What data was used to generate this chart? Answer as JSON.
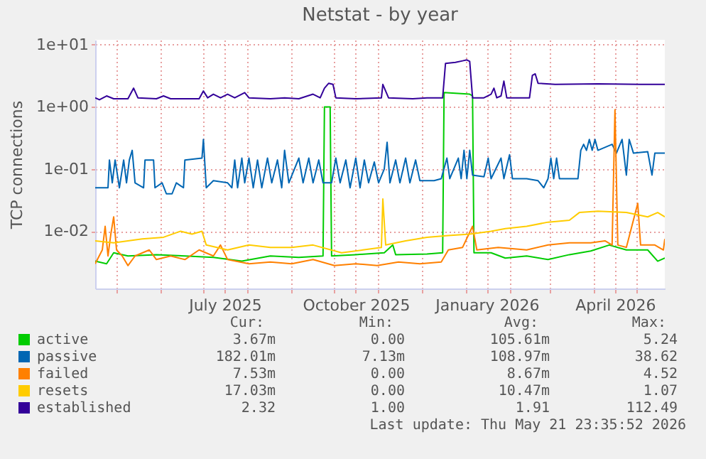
{
  "chart_data": {
    "type": "line",
    "title": "Netstat - by year",
    "ylabel": "TCP connections",
    "log": "y",
    "grid": true,
    "legend": "bottom",
    "marker": "none",
    "line_style": "solid",
    "xlim": [
      "2025-04-16",
      "2026-05-21"
    ],
    "xticks": [
      {
        "value": "2025-05-01",
        "label": null
      },
      {
        "value": "2025-06-01",
        "label": null
      },
      {
        "value": "2025-07-01",
        "label": null
      },
      {
        "value": "2025-07-16",
        "label": "July 2025"
      },
      {
        "value": "2025-08-01",
        "label": null
      },
      {
        "value": "2025-09-01",
        "label": null
      },
      {
        "value": "2025-10-01",
        "label": null
      },
      {
        "value": "2025-10-16",
        "label": "October 2025"
      },
      {
        "value": "2025-11-01",
        "label": null
      },
      {
        "value": "2025-12-01",
        "label": null
      },
      {
        "value": "2026-01-01",
        "label": null
      },
      {
        "value": "2026-01-16",
        "label": "January 2026"
      },
      {
        "value": "2026-02-01",
        "label": null
      },
      {
        "value": "2026-03-01",
        "label": null
      },
      {
        "value": "2026-04-01",
        "label": null
      },
      {
        "value": "2026-04-16",
        "label": "April 2026"
      },
      {
        "value": "2026-05-01",
        "label": null
      }
    ],
    "ylim": [
      0.0012,
      12
    ],
    "yticks": [
      {
        "value": 0.01,
        "label": "1e-02"
      },
      {
        "value": 0.1,
        "label": "1e-01"
      },
      {
        "value": 1,
        "label": "1e+00"
      },
      {
        "value": 10,
        "label": "1e+01"
      }
    ],
    "series": [
      {
        "name": "active",
        "color": "#00cc00",
        "x": [
          "2025-04-16",
          "2025-04-24",
          "2025-04-29",
          "2025-05-09",
          "2025-05-29",
          "2025-06-18",
          "2025-07-08",
          "2025-07-28",
          "2025-08-17",
          "2025-09-06",
          "2025-09-23",
          "2025-09-24",
          "2025-09-28",
          "2025-09-29",
          "2025-10-16",
          "2025-11-05",
          "2025-11-11",
          "2025-11-13",
          "2025-12-05",
          "2025-12-16",
          "2025-12-17",
          "2026-01-04",
          "2026-01-06",
          "2026-01-07",
          "2026-01-19",
          "2026-01-29",
          "2026-02-13",
          "2026-02-28",
          "2026-03-15",
          "2026-03-30",
          "2026-04-12",
          "2026-04-24",
          "2026-05-09",
          "2026-05-16",
          "2026-05-21"
        ],
        "values": [
          0.0033,
          0.003,
          0.0045,
          0.004,
          0.0042,
          0.004,
          0.0038,
          0.0033,
          0.004,
          0.0038,
          0.004,
          1.0,
          1.0,
          0.004,
          0.0042,
          0.0045,
          0.006,
          0.0042,
          0.0043,
          0.0045,
          1.7,
          1.6,
          1.5,
          0.0045,
          0.0045,
          0.0037,
          0.004,
          0.0035,
          0.0042,
          0.0048,
          0.006,
          0.005,
          0.005,
          0.0033,
          0.0037
        ]
      },
      {
        "name": "passive",
        "color": "#0066b3",
        "x": [
          "2025-04-16",
          "2025-04-25",
          "2025-04-26",
          "2025-04-28",
          "2025-04-30",
          "2025-05-03",
          "2025-05-06",
          "2025-05-08",
          "2025-05-10",
          "2025-05-12",
          "2025-05-14",
          "2025-05-20",
          "2025-05-21",
          "2025-05-27",
          "2025-05-28",
          "2025-06-02",
          "2025-06-05",
          "2025-06-09",
          "2025-06-12",
          "2025-06-17",
          "2025-06-18",
          "2025-06-30",
          "2025-07-01",
          "2025-07-03",
          "2025-07-08",
          "2025-07-18",
          "2025-07-21",
          "2025-07-23",
          "2025-07-25",
          "2025-07-28",
          "2025-07-30",
          "2025-08-02",
          "2025-08-05",
          "2025-08-08",
          "2025-08-11",
          "2025-08-15",
          "2025-08-18",
          "2025-08-22",
          "2025-08-25",
          "2025-08-27",
          "2025-08-30",
          "2025-09-06",
          "2025-09-09",
          "2025-09-13",
          "2025-09-16",
          "2025-09-20",
          "2025-09-23",
          "2025-09-29",
          "2025-10-02",
          "2025-10-05",
          "2025-10-09",
          "2025-10-12",
          "2025-10-16",
          "2025-10-19",
          "2025-10-22",
          "2025-10-25",
          "2025-10-29",
          "2025-11-01",
          "2025-11-05",
          "2025-11-07",
          "2025-11-09",
          "2025-11-13",
          "2025-11-16",
          "2025-11-20",
          "2025-11-23",
          "2025-11-27",
          "2025-11-30",
          "2025-12-10",
          "2025-12-15",
          "2025-12-19",
          "2025-12-21",
          "2025-12-27",
          "2025-12-29",
          "2025-12-31",
          "2026-01-02",
          "2026-01-04",
          "2026-01-06",
          "2026-01-14",
          "2026-01-17",
          "2026-01-19",
          "2026-01-26",
          "2026-01-28",
          "2026-02-01",
          "2026-02-03",
          "2026-02-13",
          "2026-02-21",
          "2026-02-25",
          "2026-02-28",
          "2026-03-02",
          "2026-03-04",
          "2026-03-06",
          "2026-03-08",
          "2026-03-21",
          "2026-03-23",
          "2026-03-25",
          "2026-03-27",
          "2026-03-29",
          "2026-03-31",
          "2026-04-02",
          "2026-04-04",
          "2026-04-14",
          "2026-04-17",
          "2026-04-21",
          "2026-04-24",
          "2026-04-26",
          "2026-04-29",
          "2026-05-09",
          "2026-05-12",
          "2026-05-14",
          "2026-05-21"
        ],
        "values": [
          0.05,
          0.05,
          0.14,
          0.06,
          0.14,
          0.05,
          0.14,
          0.06,
          0.14,
          0.2,
          0.06,
          0.05,
          0.14,
          0.14,
          0.05,
          0.06,
          0.04,
          0.04,
          0.06,
          0.05,
          0.14,
          0.15,
          0.3,
          0.05,
          0.065,
          0.06,
          0.05,
          0.14,
          0.05,
          0.15,
          0.06,
          0.15,
          0.05,
          0.14,
          0.05,
          0.15,
          0.06,
          0.14,
          0.05,
          0.2,
          0.06,
          0.15,
          0.06,
          0.15,
          0.06,
          0.14,
          0.06,
          0.06,
          0.15,
          0.06,
          0.14,
          0.05,
          0.15,
          0.05,
          0.14,
          0.06,
          0.13,
          0.06,
          0.1,
          0.27,
          0.06,
          0.14,
          0.06,
          0.15,
          0.06,
          0.14,
          0.065,
          0.065,
          0.07,
          0.15,
          0.07,
          0.15,
          0.07,
          0.2,
          0.07,
          0.2,
          0.08,
          0.075,
          0.15,
          0.07,
          0.15,
          0.07,
          0.17,
          0.07,
          0.07,
          0.065,
          0.05,
          0.07,
          0.15,
          0.07,
          0.15,
          0.07,
          0.07,
          0.2,
          0.25,
          0.2,
          0.3,
          0.2,
          0.3,
          0.2,
          0.25,
          0.18,
          0.3,
          0.08,
          0.3,
          0.18,
          0.19,
          0.08,
          0.18,
          0.18
        ]
      },
      {
        "name": "failed",
        "color": "#ff8000",
        "x": [
          "2025-04-16",
          "2025-04-21",
          "2025-04-23",
          "2025-04-25",
          "2025-04-27",
          "2025-04-29",
          "2025-05-01",
          "2025-05-05",
          "2025-05-09",
          "2025-05-14",
          "2025-05-24",
          "2025-05-29",
          "2025-06-08",
          "2025-06-18",
          "2025-06-28",
          "2025-07-08",
          "2025-07-13",
          "2025-07-18",
          "2025-08-02",
          "2025-08-17",
          "2025-09-01",
          "2025-09-16",
          "2025-10-01",
          "2025-10-16",
          "2025-10-31",
          "2025-11-15",
          "2025-11-30",
          "2025-12-15",
          "2025-12-20",
          "2025-12-30",
          "2026-01-06",
          "2026-01-09",
          "2026-01-24",
          "2026-02-13",
          "2026-02-28",
          "2026-03-15",
          "2026-03-30",
          "2026-04-09",
          "2026-04-14",
          "2026-04-16",
          "2026-04-18",
          "2026-04-24",
          "2026-05-02",
          "2026-05-04",
          "2026-05-14",
          "2026-05-20",
          "2026-05-21"
        ],
        "values": [
          0.003,
          0.005,
          0.012,
          0.004,
          0.009,
          0.017,
          0.005,
          0.004,
          0.0028,
          0.004,
          0.005,
          0.0035,
          0.004,
          0.0035,
          0.005,
          0.004,
          0.006,
          0.0035,
          0.003,
          0.0032,
          0.003,
          0.0035,
          0.0028,
          0.003,
          0.0028,
          0.0032,
          0.003,
          0.0032,
          0.005,
          0.0055,
          0.012,
          0.005,
          0.0055,
          0.005,
          0.006,
          0.0065,
          0.0065,
          0.007,
          0.006,
          0.9,
          0.006,
          0.0055,
          0.028,
          0.006,
          0.006,
          0.005,
          0.0075
        ]
      },
      {
        "name": "resets",
        "color": "#ffcc00",
        "x": [
          "2025-04-16",
          "2025-04-29",
          "2025-05-09",
          "2025-05-19",
          "2025-06-03",
          "2025-06-15",
          "2025-06-23",
          "2025-06-30",
          "2025-07-03",
          "2025-07-18",
          "2025-08-02",
          "2025-08-17",
          "2025-09-01",
          "2025-09-16",
          "2025-10-06",
          "2025-10-21",
          "2025-11-03",
          "2025-11-04",
          "2025-11-06",
          "2025-11-20",
          "2025-12-05",
          "2025-12-20",
          "2026-01-04",
          "2026-01-19",
          "2026-01-29",
          "2026-02-13",
          "2026-02-28",
          "2026-03-15",
          "2026-03-22",
          "2026-04-04",
          "2026-04-24",
          "2026-05-09",
          "2026-05-16",
          "2026-05-21"
        ],
        "values": [
          0.007,
          0.0065,
          0.007,
          0.0075,
          0.008,
          0.01,
          0.009,
          0.01,
          0.006,
          0.005,
          0.006,
          0.0055,
          0.0055,
          0.006,
          0.0045,
          0.005,
          0.0055,
          0.033,
          0.006,
          0.007,
          0.008,
          0.0085,
          0.009,
          0.01,
          0.011,
          0.012,
          0.014,
          0.015,
          0.02,
          0.021,
          0.02,
          0.017,
          0.02,
          0.017
        ]
      },
      {
        "name": "established",
        "color": "#330099",
        "x": [
          "2025-04-16",
          "2025-04-19",
          "2025-04-24",
          "2025-04-29",
          "2025-05-09",
          "2025-05-13",
          "2025-05-16",
          "2025-05-29",
          "2025-06-03",
          "2025-06-08",
          "2025-06-28",
          "2025-07-01",
          "2025-07-04",
          "2025-07-08",
          "2025-07-13",
          "2025-07-18",
          "2025-07-23",
          "2025-07-30",
          "2025-08-02",
          "2025-08-17",
          "2025-08-27",
          "2025-09-06",
          "2025-09-16",
          "2025-09-21",
          "2025-09-24",
          "2025-09-27",
          "2025-09-30",
          "2025-10-02",
          "2025-10-16",
          "2025-11-03",
          "2025-11-04",
          "2025-11-08",
          "2025-11-25",
          "2025-12-05",
          "2025-12-16",
          "2025-12-18",
          "2025-12-25",
          "2025-12-30",
          "2026-01-02",
          "2026-01-04",
          "2026-01-06",
          "2026-01-14",
          "2026-01-19",
          "2026-01-21",
          "2026-01-23",
          "2026-01-26",
          "2026-01-28",
          "2026-01-30",
          "2026-02-08",
          "2026-02-15",
          "2026-02-17",
          "2026-02-19",
          "2026-02-21",
          "2026-03-05",
          "2026-04-04",
          "2026-05-04",
          "2026-05-21"
        ],
        "values": [
          1.4,
          1.3,
          1.5,
          1.35,
          1.35,
          2.0,
          1.4,
          1.35,
          1.5,
          1.35,
          1.35,
          1.8,
          1.4,
          1.6,
          1.4,
          1.6,
          1.4,
          1.7,
          1.4,
          1.35,
          1.4,
          1.35,
          1.6,
          1.4,
          2.0,
          2.4,
          2.3,
          1.4,
          1.35,
          1.4,
          2.3,
          1.4,
          1.35,
          1.4,
          1.4,
          5.0,
          5.2,
          5.5,
          5.7,
          5.4,
          1.4,
          1.4,
          1.6,
          2.0,
          1.4,
          1.5,
          2.6,
          1.4,
          1.4,
          1.4,
          3.2,
          3.4,
          2.4,
          2.3,
          2.35,
          2.3,
          2.3
        ]
      }
    ],
    "annotations": [
      "Cur:",
      "Min:",
      "Avg:",
      "Max:",
      "3.67m",
      "0.00",
      "105.61m",
      "5.24",
      "182.01m",
      "7.13m",
      "108.97m",
      "38.62",
      "7.53m",
      "0.00",
      "8.67m",
      "4.52",
      "17.03m",
      "0.00",
      "10.47m",
      "1.07",
      "2.32",
      "1.00",
      "1.91",
      "112.49",
      "Last update: Thu May 21 23:35:52 2026"
    ]
  }
}
